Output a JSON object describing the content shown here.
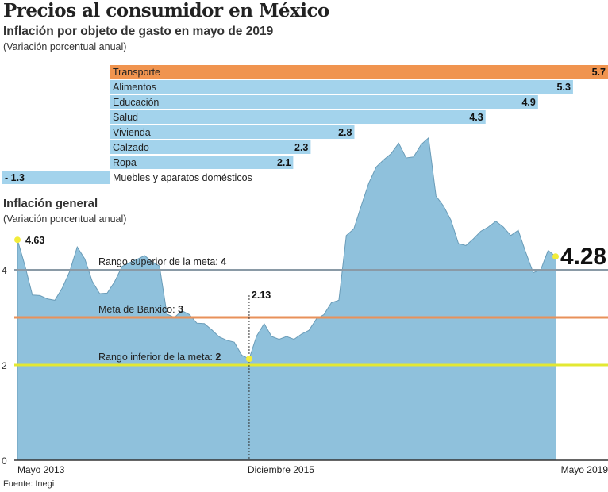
{
  "header": {
    "title": "Precios al consumidor en México",
    "subtitle": "Inflación por objeto de gasto en mayo de 2019",
    "units": "(Variación porcentual anual)"
  },
  "chart_data": [
    {
      "type": "bar",
      "orientation": "horizontal",
      "title": "Inflación por objeto de gasto en mayo de 2019",
      "subtitle": "(Variación porcentual anual)",
      "categories": [
        "Transporte",
        "Alimentos",
        "Educación",
        "Salud",
        "Vivienda",
        "Calzado",
        "Ropa",
        "Muebles y aparatos domésticos"
      ],
      "values": [
        5.7,
        5.3,
        4.9,
        4.3,
        2.8,
        2.3,
        2.1,
        -1.3
      ],
      "value_labels": [
        "5.7",
        "5.3",
        "4.9",
        "4.3",
        "2.8",
        "2.3",
        "2.1",
        "- 1.3"
      ],
      "highlight": "Transporte",
      "colors": {
        "highlight": "#f0944f",
        "default": "#a3d3ec"
      }
    },
    {
      "type": "area",
      "title": "Inflación general",
      "subtitle": "(Variación porcentual anual)",
      "x_start": "2013-05",
      "x_end": "2019-05",
      "frequency": "monthly",
      "x_tick_labels": [
        "Mayo 2013",
        "Diciembre 2015",
        "Mayo 2019"
      ],
      "y_ticks": [
        0,
        2,
        4
      ],
      "ylim": [
        0,
        7
      ],
      "values": [
        4.63,
        4.09,
        3.47,
        3.46,
        3.39,
        3.36,
        3.62,
        3.97,
        4.48,
        4.23,
        3.76,
        3.5,
        3.51,
        3.75,
        4.07,
        4.15,
        4.22,
        4.3,
        4.17,
        4.08,
        3.07,
        3.0,
        3.14,
        3.06,
        2.88,
        2.87,
        2.74,
        2.59,
        2.52,
        2.48,
        2.21,
        2.13,
        2.61,
        2.87,
        2.6,
        2.54,
        2.6,
        2.54,
        2.65,
        2.73,
        2.97,
        3.06,
        3.31,
        3.36,
        4.72,
        4.86,
        5.35,
        5.82,
        6.16,
        6.31,
        6.44,
        6.66,
        6.35,
        6.37,
        6.63,
        6.77,
        5.55,
        5.34,
        5.04,
        4.55,
        4.51,
        4.65,
        4.81,
        4.9,
        5.02,
        4.9,
        4.72,
        4.83,
        4.37,
        3.94,
        4.0,
        4.41,
        4.28
      ],
      "annotations": [
        {
          "label": "4.63",
          "x": "Mayo 2013",
          "y": 4.63
        },
        {
          "label": "2.13",
          "x": "Diciembre 2015",
          "y": 2.13
        },
        {
          "label": "4.28",
          "x": "Mayo 2019",
          "y": 4.28
        }
      ],
      "reference_lines": [
        {
          "label": "Rango superior de la meta: ",
          "value_label": "4",
          "y": 4,
          "color": "#8a9aa6"
        },
        {
          "label": "Meta de Banxico: ",
          "value_label": "3",
          "y": 3,
          "color": "#e8915a"
        },
        {
          "label": "Rango inferior de la meta: ",
          "value_label": "2",
          "y": 2,
          "color": "#e3e832"
        }
      ],
      "colors": {
        "area": "#86bcd9",
        "marker": "#f2ec3a"
      }
    }
  ],
  "footer": {
    "source": "Fuente: Inegi"
  }
}
